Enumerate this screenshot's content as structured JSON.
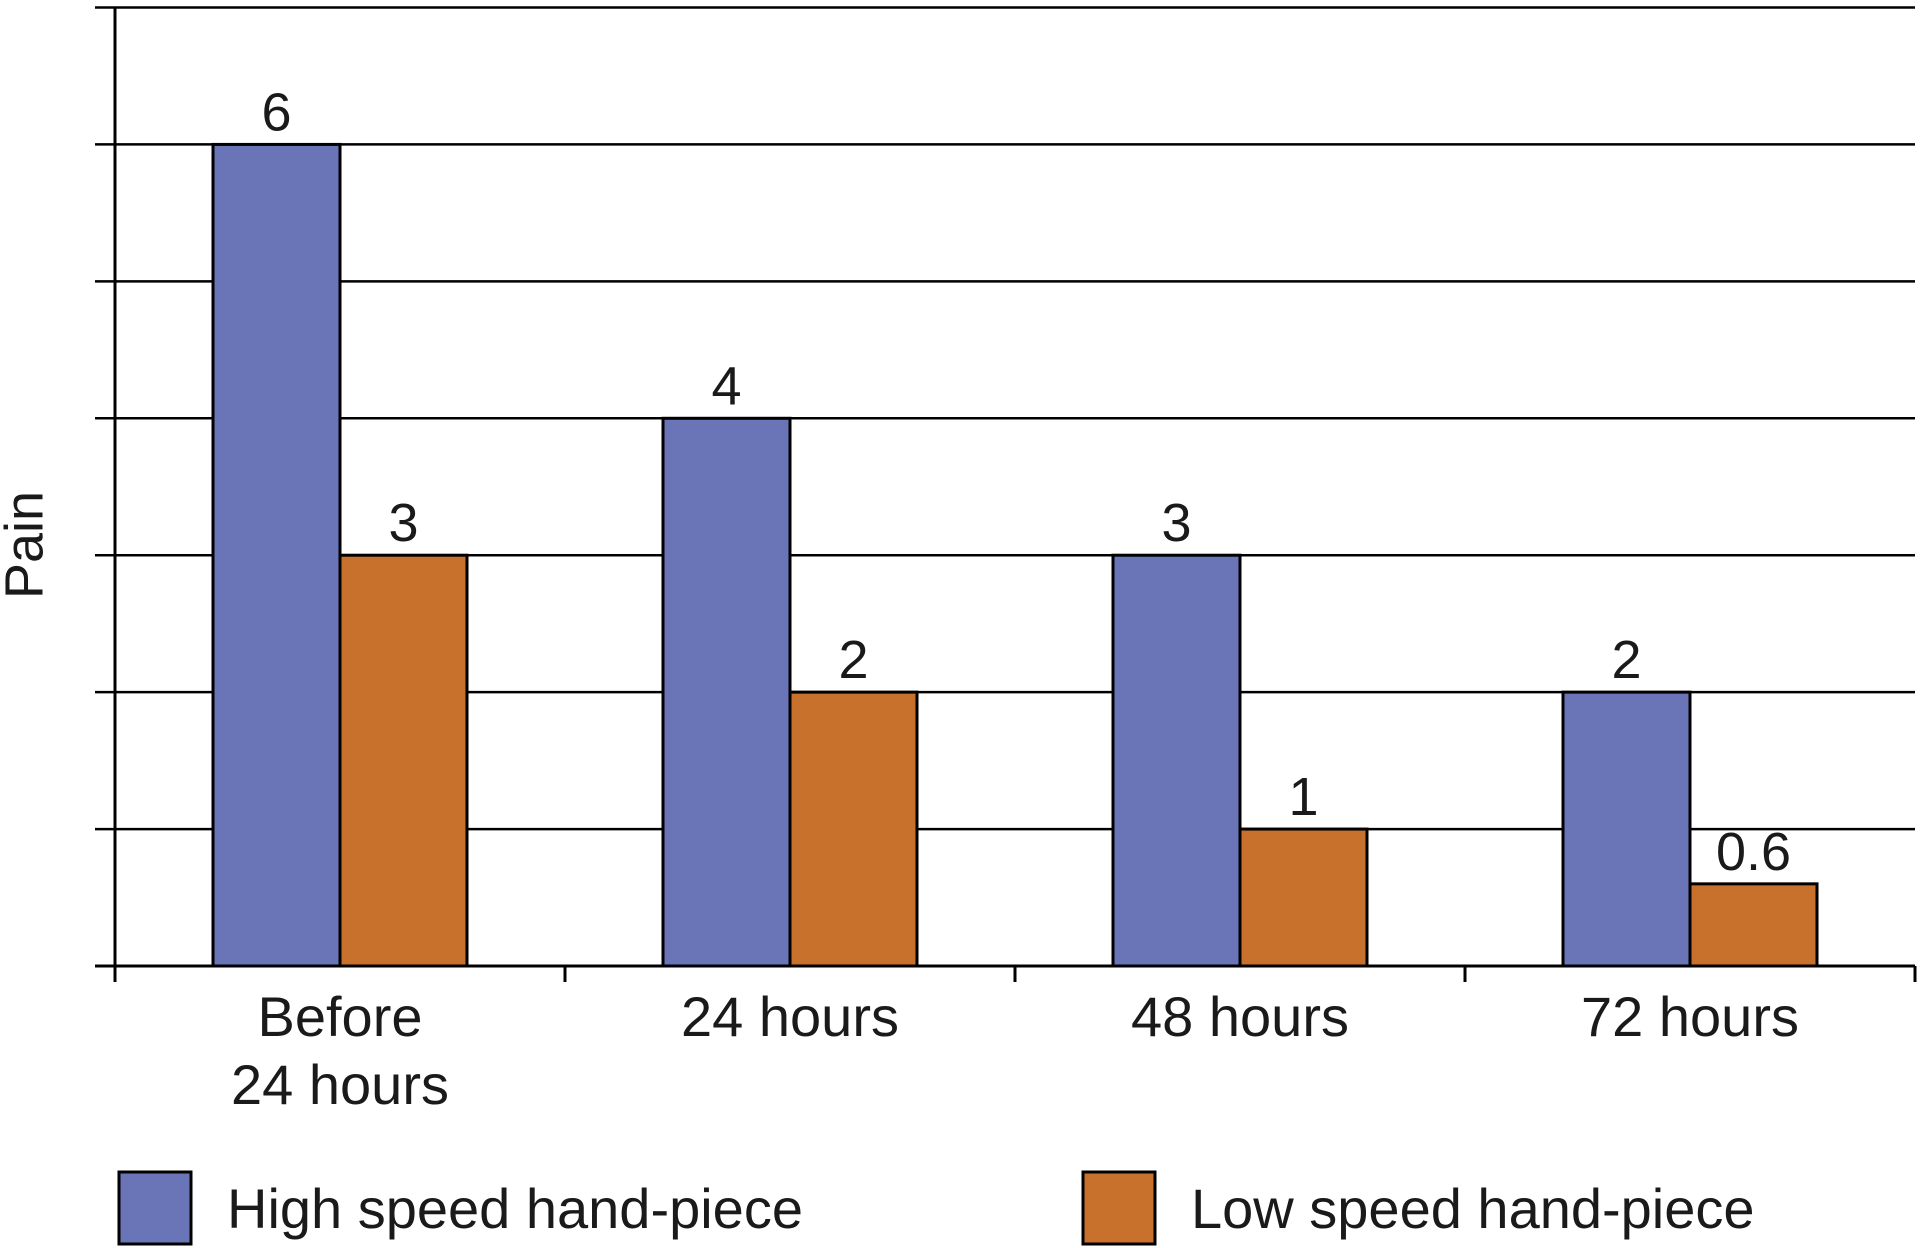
{
  "chart_data": {
    "type": "bar",
    "title": "",
    "xlabel": "",
    "ylabel": "Pain",
    "ylim": [
      0,
      7
    ],
    "grid": true,
    "legend_position": "bottom",
    "categories": [
      "Before 24 hours",
      "24 hours",
      "48 hours",
      "72 hours"
    ],
    "category_lines": [
      [
        "Before",
        "24 hours"
      ],
      [
        "24 hours"
      ],
      [
        "48 hours"
      ],
      [
        "72 hours"
      ]
    ],
    "series": [
      {
        "name": "High speed hand-piece",
        "color": "#6a75b8",
        "values": [
          6,
          4,
          3,
          2
        ],
        "labels": [
          "6",
          "4",
          "3",
          "2"
        ]
      },
      {
        "name": "Low speed hand-piece",
        "color": "#c8712c",
        "values": [
          3,
          2,
          1,
          0.6
        ],
        "labels": [
          "3",
          "2",
          "1",
          "0.6"
        ]
      }
    ]
  }
}
